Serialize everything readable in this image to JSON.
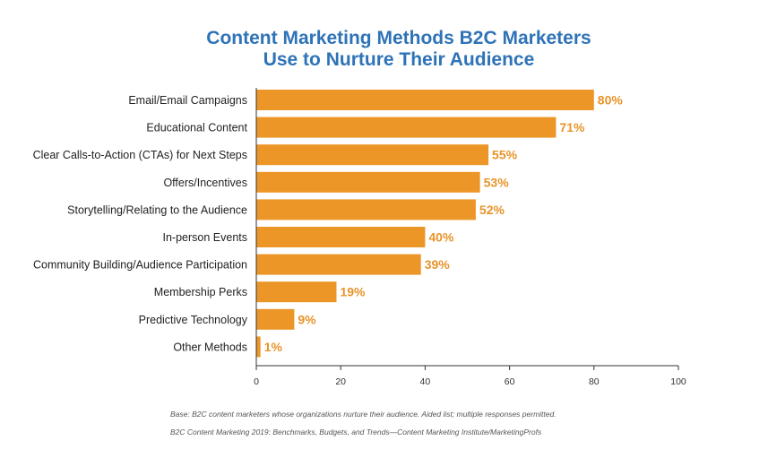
{
  "title_line1": "Content Marketing Methods B2C Marketers",
  "title_line2": "Use to Nurture Their Audience",
  "footnote_base": "Base: B2C content marketers whose organizations nurture their audience. Aided list; multiple responses permitted.",
  "footnote_source": "B2C Content Marketing 2019: Benchmarks, Budgets, and Trends—Content Marketing Institute/MarketingProfs",
  "colors": {
    "bar": "#ec9628",
    "value_label": "#e8942a",
    "title": "#2e73b7"
  },
  "chart_data": {
    "type": "bar",
    "orientation": "horizontal",
    "categories": [
      "Email/Email Campaigns",
      "Educational Content",
      "Clear Calls-to-Action (CTAs) for Next Steps",
      "Offers/Incentives",
      "Storytelling/Relating to the Audience",
      "In-person Events",
      "Community Building/Audience Participation",
      "Membership Perks",
      "Predictive Technology",
      "Other Methods"
    ],
    "values": [
      80,
      71,
      55,
      53,
      52,
      40,
      39,
      19,
      9,
      1
    ],
    "value_labels": [
      "80%",
      "71%",
      "55%",
      "53%",
      "52%",
      "40%",
      "39%",
      "19%",
      "9%",
      "1%"
    ],
    "xlim": [
      0,
      100
    ],
    "xticks": [
      0,
      20,
      40,
      60,
      80,
      100
    ],
    "xtick_labels": [
      "0",
      "20",
      "40",
      "60",
      "80",
      "100"
    ],
    "grid": false,
    "legend": "none"
  }
}
